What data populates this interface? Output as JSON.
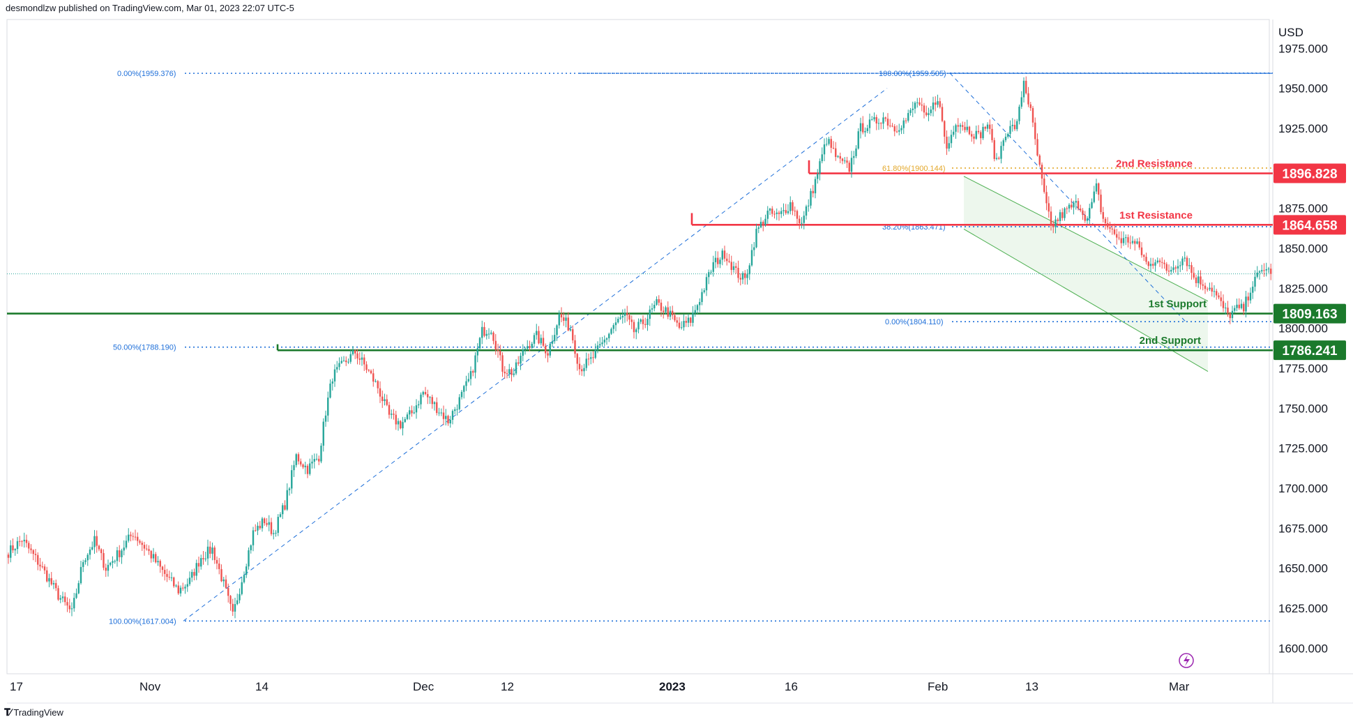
{
  "header": {
    "attribution": "desmondlzw published on TradingView.com, Mar 01, 2023 22:07 UTC-5"
  },
  "footer": {
    "brand": "TradingView",
    "logo_icon": "tradingview-logo-icon"
  },
  "colors": {
    "up": "#26a69a",
    "down": "#ef5350",
    "fib": "#1e6fd9",
    "fib_golden": "#e3a72a",
    "resistance": "#f23645",
    "support": "#1b7a2c",
    "channel_fill": "#e8f5e9",
    "channel_line": "#4caf50"
  },
  "chart_data": {
    "type": "candlestick",
    "currency": "USD",
    "y_ticks": [
      1600,
      1625,
      1650,
      1675,
      1700,
      1725,
      1750,
      1775,
      1800,
      1825,
      1850,
      1875,
      1900,
      1925,
      1950,
      1975
    ],
    "y_tick_labels": [
      "1600.000",
      "1625.000",
      "1650.000",
      "1675.000",
      "1700.000",
      "1725.000",
      "1750.000",
      "1775.000",
      "1800.000",
      "1825.000",
      "1850.000",
      "1875.000",
      "1900.000",
      "1925.000",
      "1950.000",
      "1975.000"
    ],
    "ylim": [
      1584,
      1993
    ],
    "x_tick_labels": [
      "17",
      "Nov",
      "14",
      "Dec",
      "12",
      "2023",
      "16",
      "Feb",
      "13",
      "Mar"
    ],
    "levels": [
      {
        "name": "2nd Resistance",
        "value": 1896.828,
        "value_label": "1896.828",
        "kind": "resistance"
      },
      {
        "name": "1st Resistance",
        "value": 1864.658,
        "value_label": "1864.658",
        "kind": "resistance"
      },
      {
        "name": "1st Support",
        "value": 1809.163,
        "value_label": "1809.163",
        "kind": "support"
      },
      {
        "name": "2nd Support",
        "value": 1786.241,
        "value_label": "1786.241",
        "kind": "support"
      }
    ],
    "fib_labels": [
      {
        "text": "0.00%(1959.376)",
        "value": 1959.376
      },
      {
        "text": "50.00%(1788.190)",
        "value": 1788.19
      },
      {
        "text": "100.00%(1617.004)",
        "value": 1617.004
      },
      {
        "text": "100.00%(1959.505)",
        "value": 1959.505
      },
      {
        "text": "61.80%(1900.144)",
        "value": 1900.144
      },
      {
        "text": "38.20%(1863.471)",
        "value": 1863.471
      },
      {
        "text": "0.00%(1804.110)",
        "value": 1804.11
      }
    ],
    "last_price_approx": 1834,
    "path": [
      [
        0,
        1660
      ],
      [
        6,
        1668
      ],
      [
        14,
        1652
      ],
      [
        22,
        1633
      ],
      [
        28,
        1622
      ],
      [
        33,
        1655
      ],
      [
        38,
        1667
      ],
      [
        43,
        1650
      ],
      [
        49,
        1660
      ],
      [
        55,
        1672
      ],
      [
        62,
        1660
      ],
      [
        68,
        1648
      ],
      [
        75,
        1636
      ],
      [
        80,
        1642
      ],
      [
        85,
        1657
      ],
      [
        90,
        1662
      ],
      [
        95,
        1640
      ],
      [
        99,
        1620
      ],
      [
        103,
        1643
      ],
      [
        108,
        1672
      ],
      [
        113,
        1680
      ],
      [
        117,
        1672
      ],
      [
        122,
        1690
      ],
      [
        127,
        1720
      ],
      [
        132,
        1712
      ],
      [
        137,
        1720
      ],
      [
        140,
        1748
      ],
      [
        143,
        1770
      ],
      [
        148,
        1778
      ],
      [
        153,
        1785
      ],
      [
        158,
        1775
      ],
      [
        163,
        1763
      ],
      [
        168,
        1745
      ],
      [
        173,
        1740
      ],
      [
        178,
        1747
      ],
      [
        183,
        1760
      ],
      [
        188,
        1752
      ],
      [
        194,
        1742
      ],
      [
        199,
        1755
      ],
      [
        204,
        1770
      ],
      [
        209,
        1798
      ],
      [
        213,
        1800
      ],
      [
        218,
        1775
      ],
      [
        223,
        1772
      ],
      [
        228,
        1788
      ],
      [
        233,
        1795
      ],
      [
        238,
        1785
      ],
      [
        243,
        1808
      ],
      [
        248,
        1800
      ],
      [
        252,
        1775
      ],
      [
        257,
        1780
      ],
      [
        262,
        1790
      ],
      [
        267,
        1802
      ],
      [
        272,
        1808
      ],
      [
        276,
        1798
      ],
      [
        281,
        1805
      ],
      [
        286,
        1815
      ],
      [
        291,
        1810
      ],
      [
        296,
        1800
      ],
      [
        301,
        1805
      ],
      [
        306,
        1822
      ],
      [
        311,
        1840
      ],
      [
        316,
        1847
      ],
      [
        321,
        1835
      ],
      [
        325,
        1830
      ],
      [
        330,
        1860
      ],
      [
        335,
        1872
      ],
      [
        340,
        1870
      ],
      [
        345,
        1878
      ],
      [
        350,
        1865
      ],
      [
        356,
        1892
      ],
      [
        361,
        1918
      ],
      [
        366,
        1905
      ],
      [
        371,
        1900
      ],
      [
        376,
        1925
      ],
      [
        381,
        1928
      ],
      [
        386,
        1932
      ],
      [
        391,
        1925
      ],
      [
        396,
        1930
      ],
      [
        401,
        1942
      ],
      [
        405,
        1930
      ],
      [
        410,
        1945
      ],
      [
        414,
        1912
      ],
      [
        418,
        1930
      ],
      [
        423,
        1925
      ],
      [
        428,
        1920
      ],
      [
        432,
        1928
      ],
      [
        436,
        1903
      ],
      [
        440,
        1923
      ],
      [
        445,
        1927
      ],
      [
        448,
        1955
      ],
      [
        451,
        1935
      ],
      [
        454,
        1908
      ],
      [
        457,
        1883
      ],
      [
        460,
        1863
      ],
      [
        464,
        1870
      ],
      [
        468,
        1875
      ],
      [
        472,
        1878
      ],
      [
        476,
        1868
      ],
      [
        480,
        1888
      ],
      [
        483,
        1868
      ],
      [
        487,
        1860
      ],
      [
        491,
        1855
      ],
      [
        495,
        1855
      ],
      [
        499,
        1850
      ],
      [
        503,
        1838
      ],
      [
        507,
        1845
      ],
      [
        511,
        1835
      ],
      [
        515,
        1840
      ],
      [
        519,
        1845
      ],
      [
        523,
        1832
      ],
      [
        527,
        1828
      ],
      [
        531,
        1825
      ],
      [
        535,
        1815
      ],
      [
        538,
        1808
      ],
      [
        542,
        1812
      ],
      [
        545,
        1812
      ],
      [
        548,
        1825
      ],
      [
        551,
        1832
      ],
      [
        554,
        1838
      ],
      [
        557,
        1834
      ]
    ],
    "title": ""
  }
}
